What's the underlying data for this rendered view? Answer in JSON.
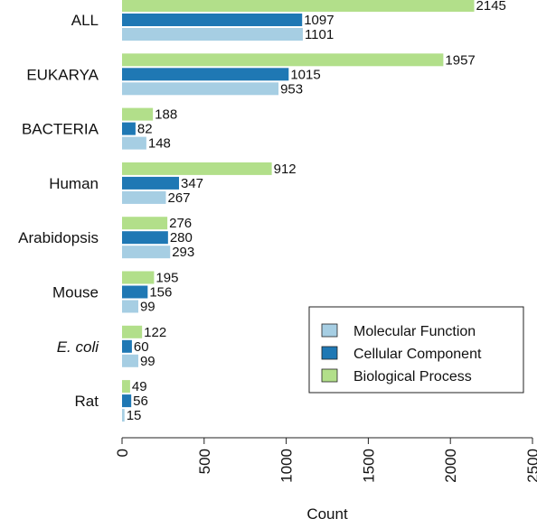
{
  "chart_data": {
    "type": "bar",
    "orientation": "horizontal",
    "categories": [
      "ALL",
      "EUKARYA",
      "BACTERIA",
      "Human",
      "Arabidopsis",
      "Mouse",
      "E. coli",
      "Rat"
    ],
    "italic_categories": [
      "E. coli"
    ],
    "series": [
      {
        "name": "Biological Process",
        "color": "#b2df8a",
        "values": [
          2145,
          1957,
          188,
          912,
          276,
          195,
          122,
          49
        ]
      },
      {
        "name": "Cellular Component",
        "color": "#1f78b4",
        "values": [
          1097,
          1015,
          82,
          347,
          280,
          156,
          60,
          56
        ]
      },
      {
        "name": "Molecular Function",
        "color": "#a6cee3",
        "values": [
          1101,
          953,
          148,
          267,
          293,
          99,
          99,
          15
        ]
      }
    ],
    "legend_order": [
      "Molecular Function",
      "Cellular Component",
      "Biological Process"
    ],
    "legend_position": "bottom-right",
    "xlabel": "Count",
    "ylabel": "",
    "xlim": [
      0,
      2500
    ],
    "xticks": [
      0,
      500,
      1000,
      1500,
      2000,
      2500
    ],
    "grid": false
  }
}
